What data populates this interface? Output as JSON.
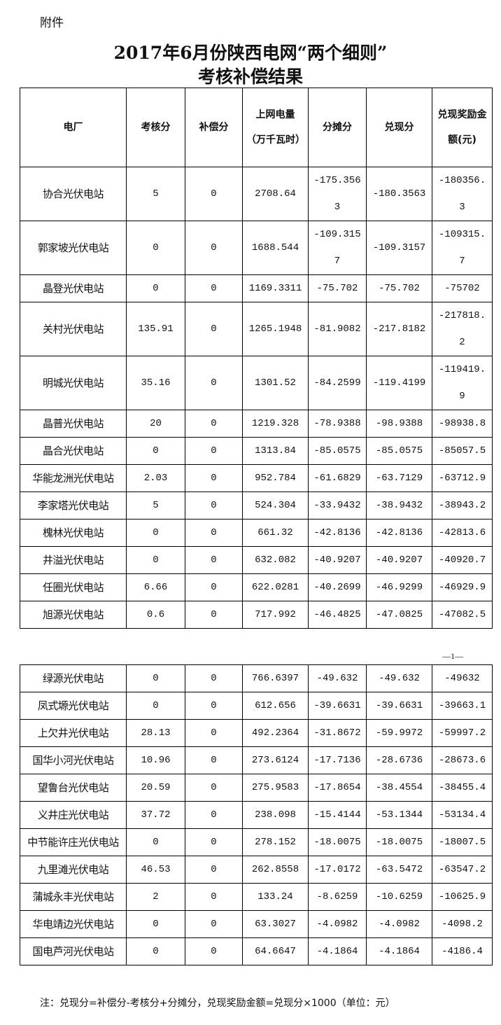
{
  "attachment_label": "附件",
  "title_line1": "2017年6月份陕西电网“两个细则”",
  "title_line2": "考核补偿结果",
  "headers": [
    "电厂",
    "考核分",
    "补偿分",
    "上网电量（万千瓦时）",
    "分摊分",
    "兑现分",
    "兑现奖励金额(元)"
  ],
  "page1_rows": [
    [
      "协合光伏电站",
      "5",
      "0",
      "2708.64",
      "-175.3563",
      "-180.3563",
      "-180356.3"
    ],
    [
      "郭家坡光伏电站",
      "0",
      "0",
      "1688.544",
      "-109.3157",
      "-109.3157",
      "-109315.7"
    ],
    [
      "晶登光伏电站",
      "0",
      "0",
      "1169.3311",
      "-75.702",
      "-75.702",
      "-75702"
    ],
    [
      "关村光伏电站",
      "135.91",
      "0",
      "1265.1948",
      "-81.9082",
      "-217.8182",
      "-217818.2"
    ],
    [
      "明城光伏电站",
      "35.16",
      "0",
      "1301.52",
      "-84.2599",
      "-119.4199",
      "-119419.9"
    ],
    [
      "晶普光伏电站",
      "20",
      "0",
      "1219.328",
      "-78.9388",
      "-98.9388",
      "-98938.8"
    ],
    [
      "晶合光伏电站",
      "0",
      "0",
      "1313.84",
      "-85.0575",
      "-85.0575",
      "-85057.5"
    ],
    [
      "华能龙洲光伏电站",
      "2.03",
      "0",
      "952.784",
      "-61.6829",
      "-63.7129",
      "-63712.9"
    ],
    [
      "李家塔光伏电站",
      "5",
      "0",
      "524.304",
      "-33.9432",
      "-38.9432",
      "-38943.2"
    ],
    [
      "槐林光伏电站",
      "0",
      "0",
      "661.32",
      "-42.8136",
      "-42.8136",
      "-42813.6"
    ],
    [
      "井溢光伏电站",
      "0",
      "0",
      "632.082",
      "-40.9207",
      "-40.9207",
      "-40920.7"
    ],
    [
      "任圈光伏电站",
      "6.66",
      "0",
      "622.0281",
      "-40.2699",
      "-46.9299",
      "-46929.9"
    ],
    [
      "旭源光伏电站",
      "0.6",
      "0",
      "717.992",
      "-46.4825",
      "-47.0825",
      "-47082.5"
    ]
  ],
  "page_number": "—1—",
  "page2_rows": [
    [
      "绿源光伏电站",
      "0",
      "0",
      "766.6397",
      "-49.632",
      "-49.632",
      "-49632"
    ],
    [
      "凤式塬光伏电站",
      "0",
      "0",
      "612.656",
      "-39.6631",
      "-39.6631",
      "-39663.1"
    ],
    [
      "上欠井光伏电站",
      "28.13",
      "0",
      "492.2364",
      "-31.8672",
      "-59.9972",
      "-59997.2"
    ],
    [
      "国华小河光伏电站",
      "10.96",
      "0",
      "273.6124",
      "-17.7136",
      "-28.6736",
      "-28673.6"
    ],
    [
      "望鲁台光伏电站",
      "20.59",
      "0",
      "275.9583",
      "-17.8654",
      "-38.4554",
      "-38455.4"
    ],
    [
      "义井庄光伏电站",
      "37.72",
      "0",
      "238.098",
      "-15.4144",
      "-53.1344",
      "-53134.4"
    ],
    [
      "中节能许庄光伏电站",
      "0",
      "0",
      "278.152",
      "-18.0075",
      "-18.0075",
      "-18007.5"
    ],
    [
      "九里滩光伏电站",
      "46.53",
      "0",
      "262.8558",
      "-17.0172",
      "-63.5472",
      "-63547.2"
    ],
    [
      "蒲城永丰光伏电站",
      "2",
      "0",
      "133.24",
      "-8.6259",
      "-10.6259",
      "-10625.9"
    ],
    [
      "华电靖边光伏电站",
      "0",
      "0",
      "63.3027",
      "-4.0982",
      "-4.0982",
      "-4098.2"
    ],
    [
      "国电芦河光伏电站",
      "0",
      "0",
      "64.6647",
      "-4.1864",
      "-4.1864",
      "-4186.4"
    ]
  ],
  "note": "注：兑现分=补偿分-考核分+分摊分，兑现奖励金额=兑现分×1000（单位：元）"
}
